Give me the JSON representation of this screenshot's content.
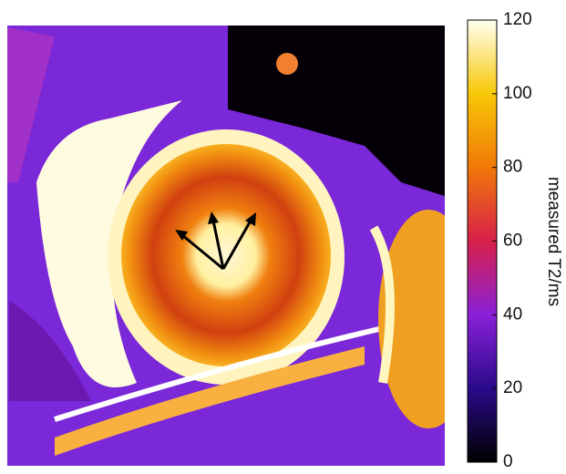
{
  "colorbar": {
    "label": "measured T2/ms",
    "lim": [
      0,
      120
    ],
    "ticks": [
      0,
      20,
      40,
      60,
      80,
      100,
      120
    ],
    "colors": [
      "#000000",
      "#2a0a8a",
      "#8a20d8",
      "#d8204a",
      "#f07808",
      "#f8c808",
      "#fffff0"
    ]
  }
}
